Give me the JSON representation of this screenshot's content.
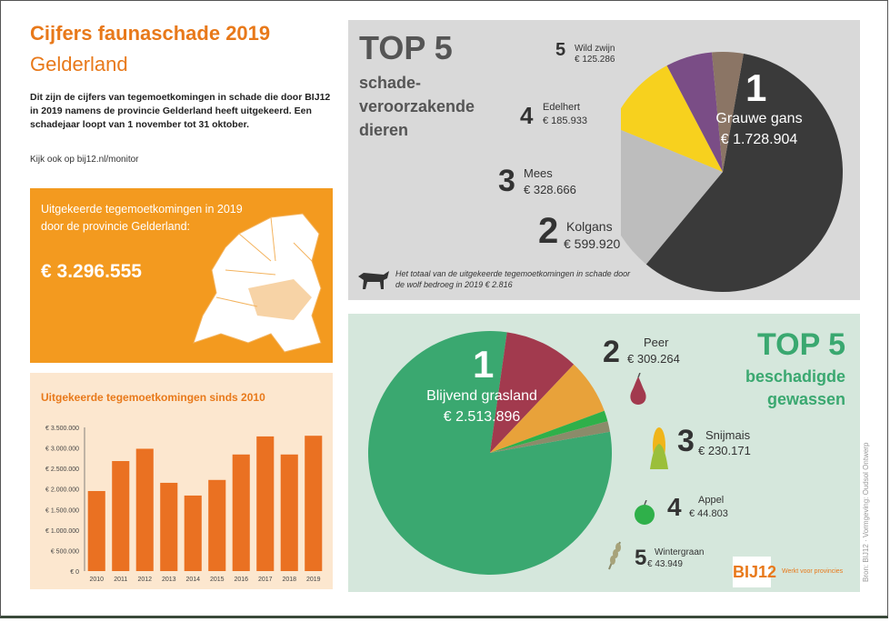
{
  "header": {
    "title_line1": "Cijfers faunaschade 2019",
    "title_line2": "Gelderland",
    "intro": "Dit zijn de cijfers van tegemoetkomingen in schade die door BIJ12 in 2019 namens de provincie Gelderland heeft uitgekeerd. Een schadejaar loopt van 1 november tot 31 oktober.",
    "link_text": "Kijk ook op bij12.nl/monitor"
  },
  "summary": {
    "text": "Uitgekeerde tegemoetkomingen in 2019 door de provincie Gelderland:",
    "amount": "€ 3.296.555"
  },
  "animals": {
    "title": "TOP 5",
    "subtitle": "schade-veroorzakende dieren",
    "wolf_note": "Het totaal van de uitgekeerde tegemoetkomingen in schade door de wolf bedroeg in 2019 € 2.816"
  },
  "crops": {
    "title": "TOP 5",
    "subtitle": "beschadigde gewassen"
  },
  "footer": {
    "logo": "BIJ12",
    "tagline": "Werkt voor provincies",
    "credit": "Bron: BIJ12 · Vormgeving: Oudsol Ontwerp"
  },
  "colors": {
    "orange": "#f39a1f",
    "bar": "#ea7122",
    "grey_panel": "#d9d9d9",
    "green_panel": "#d5e7dc",
    "green_text": "#3aa870"
  },
  "chart_data": [
    {
      "type": "bar",
      "title": "Uitgekeerde tegemoetkomingen sinds 2010",
      "categories": [
        "2010",
        "2011",
        "2012",
        "2013",
        "2014",
        "2015",
        "2016",
        "2017",
        "2018",
        "2019"
      ],
      "values": [
        1950000,
        2680000,
        2980000,
        2150000,
        1840000,
        2220000,
        2840000,
        3280000,
        2840000,
        3296555
      ],
      "ylim": [
        0,
        3500000
      ],
      "yticks": [
        "€ 0",
        "€ 500.000",
        "€ 1.000.000",
        "€ 1.500.000",
        "€ 2.000.000",
        "€ 2.500.000",
        "€ 3.000.000",
        "€ 3.500.000"
      ],
      "color": "#ea7122"
    },
    {
      "type": "pie",
      "title": "TOP 5 schade-veroorzakende dieren",
      "slices": [
        {
          "rank": "1",
          "name": "Grauwe gans",
          "amount": "€ 1.728.904",
          "value": 1728904,
          "color": "#3a3a3a"
        },
        {
          "rank": "2",
          "name": "Kolgans",
          "amount": "€ 599.920",
          "value": 599920,
          "color": "#bdbdbd"
        },
        {
          "rank": "3",
          "name": "Mees",
          "amount": "€ 328.666",
          "value": 328666,
          "color": "#f7d11e"
        },
        {
          "rank": "4",
          "name": "Edelhert",
          "amount": "€ 185.933",
          "value": 185933,
          "color": "#7a4d86"
        },
        {
          "rank": "5",
          "name": "Wild zwijn",
          "amount": "€ 125.286",
          "value": 125286,
          "color": "#8b7565"
        }
      ]
    },
    {
      "type": "pie",
      "title": "TOP 5 beschadigde gewassen",
      "slices": [
        {
          "rank": "1",
          "name": "Blijvend grasland",
          "amount": "€ 2.513.896",
          "value": 2513896,
          "color": "#3aa870"
        },
        {
          "rank": "2",
          "name": "Peer",
          "amount": "€ 309.264",
          "value": 309264,
          "color": "#a23a4e"
        },
        {
          "rank": "3",
          "name": "Snijmais",
          "amount": "€ 230.171",
          "value": 230171,
          "color": "#e8a23a"
        },
        {
          "rank": "4",
          "name": "Appel",
          "amount": "€ 44.803",
          "value": 44803,
          "color": "#2fb04a"
        },
        {
          "rank": "5",
          "name": "Wintergraan",
          "amount": "€ 43.949",
          "value": 43949,
          "color": "#8b8b6a"
        }
      ]
    }
  ]
}
